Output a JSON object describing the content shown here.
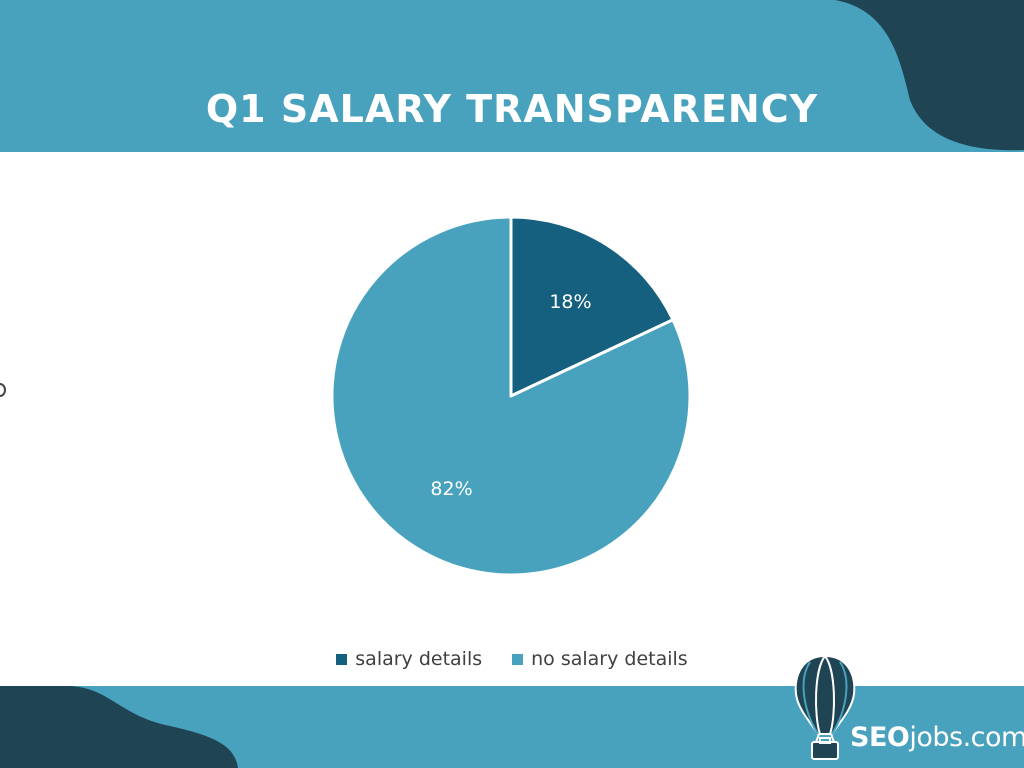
{
  "header": {
    "title": "Q1 SALARY TRANSPARENCY"
  },
  "colors": {
    "band": "#48a2be",
    "band_dark": "#1f4454",
    "slice_salary": "#16607f",
    "slice_no_salary": "#48a2be"
  },
  "chart_data": {
    "type": "pie",
    "title": "",
    "slices": [
      {
        "label": "salary details",
        "value": 18,
        "display": "18%",
        "color": "#16607f"
      },
      {
        "label": "no salary details",
        "value": 82,
        "display": "82%",
        "color": "#48a2be"
      }
    ],
    "legend_position": "bottom"
  },
  "legend": {
    "items": [
      {
        "label": "salary details",
        "color": "#16607f"
      },
      {
        "label": "no salary details",
        "color": "#48a2be"
      }
    ]
  },
  "logo": {
    "brand_bold": "SEO",
    "brand_rest": "jobs.com",
    "icon": "hot-air-balloon-icon"
  }
}
